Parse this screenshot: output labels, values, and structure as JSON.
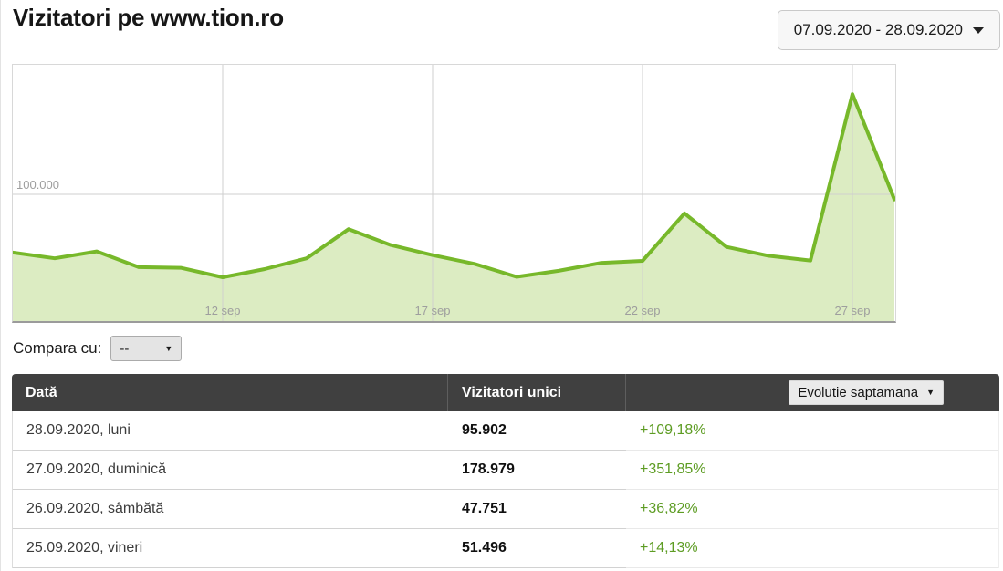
{
  "page": {
    "title": "Vizitatori pe www.tion.ro"
  },
  "date_range": {
    "label": "07.09.2020 - 28.09.2020"
  },
  "compare": {
    "label": "Compara cu:",
    "selected": "--"
  },
  "colors": {
    "line_green": "#77b82a",
    "fill_green": "#dcecc2",
    "percent_green": "#5d9c23",
    "grid_gray": "#cfcfcf",
    "axis_label_gray": "#9e9e9e",
    "table_header_bg": "#404040"
  },
  "chart_data": {
    "type": "area",
    "title": "Vizitatori pe www.tion.ro",
    "xlabel": "",
    "ylabel": "",
    "x": [
      "07 sep",
      "08 sep",
      "09 sep",
      "10 sep",
      "11 sep",
      "12 sep",
      "13 sep",
      "14 sep",
      "15 sep",
      "16 sep",
      "17 sep",
      "18 sep",
      "19 sep",
      "20 sep",
      "21 sep",
      "22 sep",
      "23 sep",
      "24 sep",
      "25 sep",
      "26 sep",
      "27 sep",
      "28 sep"
    ],
    "values": [
      54000,
      49500,
      55000,
      42500,
      42000,
      34500,
      41000,
      49500,
      72500,
      60000,
      52000,
      45120,
      34901,
      39610,
      45846,
      47500,
      85000,
      58500,
      51496,
      47751,
      178979,
      95902
    ],
    "x_ticks": [
      {
        "index": 5,
        "label": "12 sep"
      },
      {
        "index": 10,
        "label": "17 sep"
      },
      {
        "index": 15,
        "label": "22 sep"
      },
      {
        "index": 20,
        "label": "27 sep"
      }
    ],
    "y_gridlines": [
      {
        "value": 100000,
        "label": "100.000"
      }
    ],
    "ylim": [
      0,
      203000
    ],
    "grid": true,
    "legend": false
  },
  "table": {
    "headers": {
      "date": "Dată",
      "visitors": "Vizitatori unici"
    },
    "evolution_dropdown": {
      "label": "Evolutie saptamana"
    },
    "rows": [
      {
        "date": "28.09.2020, luni",
        "visitors": "95.902",
        "evolution": "+109,18%"
      },
      {
        "date": "27.09.2020, duminică",
        "visitors": "178.979",
        "evolution": "+351,85%"
      },
      {
        "date": "26.09.2020, sâmbătă",
        "visitors": "47.751",
        "evolution": "+36,82%"
      },
      {
        "date": "25.09.2020, vineri",
        "visitors": "51.496",
        "evolution": "+14,13%"
      }
    ]
  }
}
